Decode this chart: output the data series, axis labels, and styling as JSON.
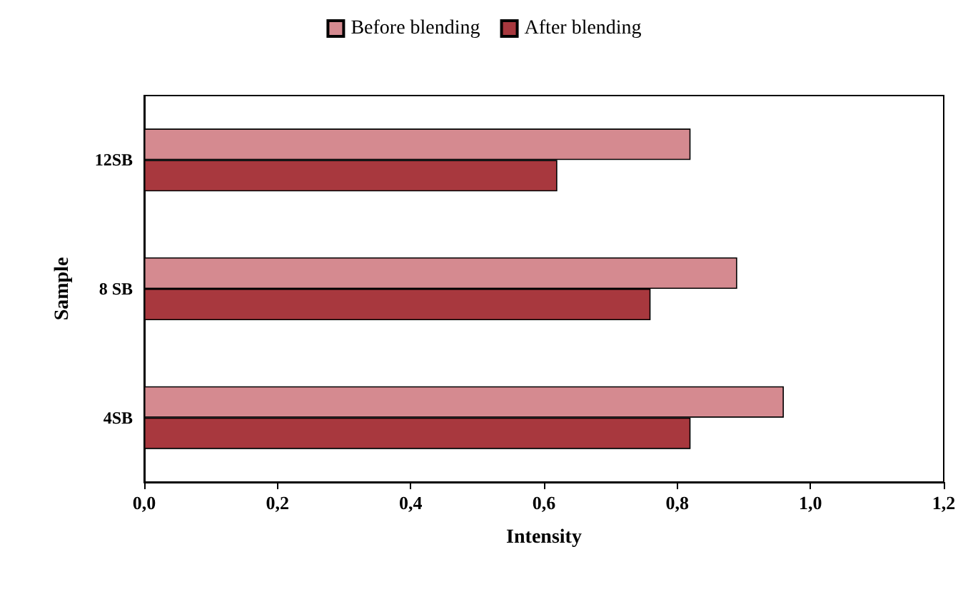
{
  "chart_data": {
    "type": "bar",
    "orientation": "horizontal",
    "xlabel": "Intensity",
    "ylabel": "Sample",
    "categories": [
      "12SB",
      "8 SB",
      "4SB"
    ],
    "series": [
      {
        "name": "Before blending",
        "color": "#d58a90",
        "values": [
          0.82,
          0.89,
          0.96
        ]
      },
      {
        "name": "After blending",
        "color": "#a8383e",
        "values": [
          0.62,
          0.76,
          0.82
        ]
      }
    ],
    "xlim": [
      0,
      1.2
    ],
    "xticks": [
      {
        "value": 0,
        "label": "0,0"
      },
      {
        "value": 0.2,
        "label": "0,2"
      },
      {
        "value": 0.4,
        "label": "0,4"
      },
      {
        "value": 0.6,
        "label": "0,6"
      },
      {
        "value": 0.8,
        "label": "0,8"
      },
      {
        "value": 1,
        "label": "1,0"
      },
      {
        "value": 1.2,
        "label": "1,2"
      }
    ],
    "grid": false,
    "legend": "top"
  }
}
